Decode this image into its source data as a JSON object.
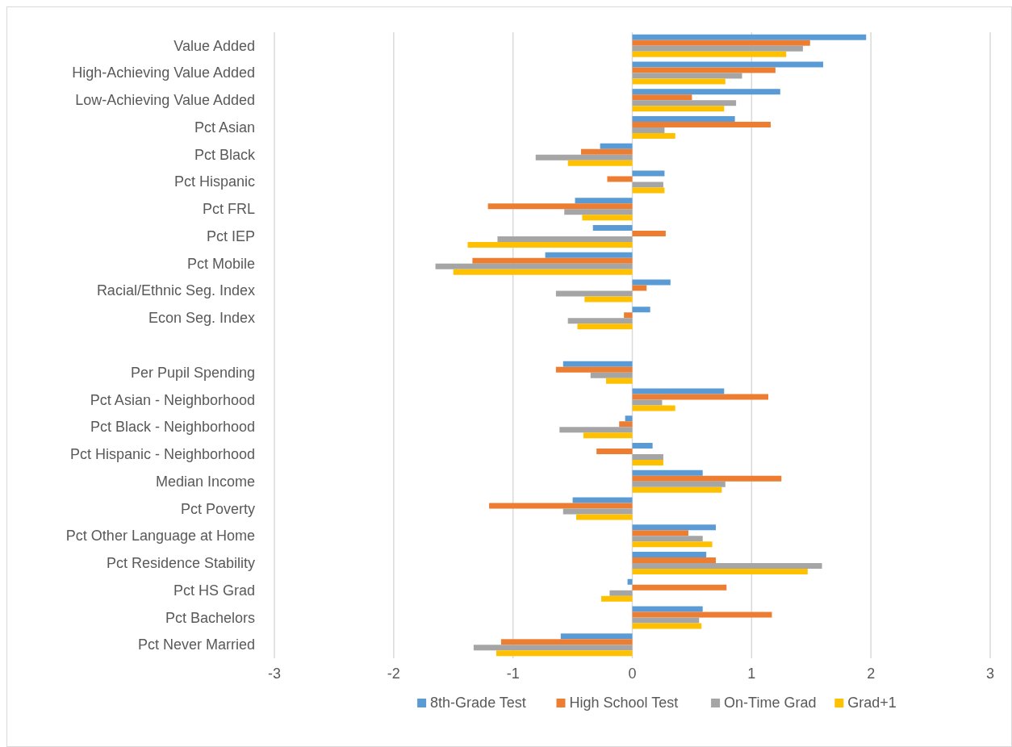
{
  "chart_data": {
    "type": "bar",
    "orientation": "horizontal",
    "categories": [
      "Value Added",
      "High-Achieving Value Added",
      "Low-Achieving Value Added",
      "Pct Asian",
      "Pct Black",
      "Pct Hispanic",
      "Pct FRL",
      "Pct IEP",
      "Pct Mobile",
      "Racial/Ethnic Seg. Index",
      "Econ Seg. Index",
      null,
      "Per Pupil Spending",
      "Pct Asian - Neighborhood",
      "Pct Black - Neighborhood",
      "Pct Hispanic - Neighborhood",
      "Median Income",
      "Pct Poverty",
      "Pct Other Language at Home",
      "Pct Residence Stability",
      "Pct HS Grad",
      "Pct Bachelors",
      "Pct Never Married"
    ],
    "series": [
      {
        "name": "8th-Grade Test",
        "color": "#5b9bd5",
        "values": [
          1.96,
          1.6,
          1.24,
          0.86,
          -0.27,
          0.27,
          -0.48,
          -0.33,
          -0.73,
          0.32,
          0.15,
          null,
          -0.58,
          0.77,
          -0.06,
          0.17,
          0.59,
          -0.5,
          0.7,
          0.62,
          -0.04,
          0.59,
          -0.6
        ]
      },
      {
        "name": "High School Test",
        "color": "#ed7d31",
        "values": [
          1.49,
          1.2,
          0.5,
          1.16,
          -0.43,
          -0.21,
          -1.21,
          0.28,
          -1.34,
          0.12,
          -0.07,
          null,
          -0.64,
          1.14,
          -0.11,
          -0.3,
          1.25,
          -1.2,
          0.47,
          0.7,
          0.79,
          1.17,
          -1.1
        ]
      },
      {
        "name": "On-Time Grad",
        "color": "#a5a5a5",
        "values": [
          1.43,
          0.92,
          0.87,
          0.27,
          -0.81,
          0.26,
          -0.57,
          -1.13,
          -1.65,
          -0.64,
          -0.54,
          null,
          -0.35,
          0.25,
          -0.61,
          0.26,
          0.78,
          -0.58,
          0.59,
          1.59,
          -0.19,
          0.56,
          -1.33
        ]
      },
      {
        "name": "Grad+1",
        "color": "#ffc000",
        "values": [
          1.29,
          0.78,
          0.77,
          0.36,
          -0.54,
          0.27,
          -0.42,
          -1.38,
          -1.5,
          -0.4,
          -0.46,
          null,
          -0.22,
          0.36,
          -0.41,
          0.26,
          0.75,
          -0.47,
          0.67,
          1.47,
          -0.26,
          0.58,
          -1.14
        ]
      }
    ],
    "xlim": [
      -3,
      3
    ],
    "xticks": [
      -3,
      -2,
      -1,
      0,
      1,
      2,
      3
    ],
    "grid": "x",
    "legend": "bottom"
  }
}
